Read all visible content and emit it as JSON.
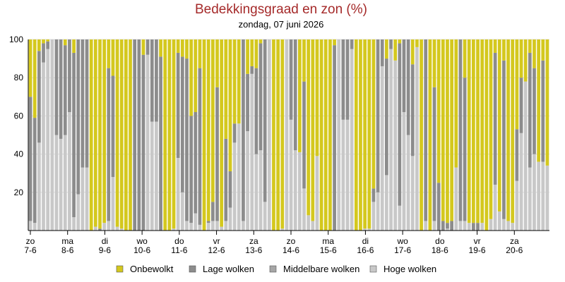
{
  "chart_data": {
    "type": "bar",
    "stacked": true,
    "title": "Bedekkingsgraad en zon (%)",
    "subtitle": "zondag, 07 juni 2026",
    "ylim": [
      0,
      100
    ],
    "yticks": [
      20,
      40,
      60,
      80,
      100
    ],
    "grid": true,
    "legend_position": "bottom",
    "x_ticks": [
      {
        "day": "zo",
        "date": "7-6"
      },
      {
        "day": "ma",
        "date": "8-6"
      },
      {
        "day": "di",
        "date": "9-6"
      },
      {
        "day": "wo",
        "date": "10-6"
      },
      {
        "day": "do",
        "date": "11-6"
      },
      {
        "day": "vr",
        "date": "12-6"
      },
      {
        "day": "za",
        "date": "13-6"
      },
      {
        "day": "zo",
        "date": "14-6"
      },
      {
        "day": "ma",
        "date": "15-6"
      },
      {
        "day": "di",
        "date": "16-6"
      },
      {
        "day": "wo",
        "date": "17-6"
      },
      {
        "day": "do",
        "date": "18-6"
      },
      {
        "day": "vr",
        "date": "19-6"
      },
      {
        "day": "za",
        "date": "20-6"
      }
    ],
    "legend": [
      {
        "name": "Onbewolkt",
        "color": "#d4c81e"
      },
      {
        "name": "Lage wolken",
        "color": "#8c8c8c"
      },
      {
        "name": "Middelbare wolken",
        "color": "#a6a6a6"
      },
      {
        "name": "Hoge wolken",
        "color": "#c8c8c8"
      }
    ],
    "colors": {
      "onbewolkt": "#d4c81e",
      "lage": "#8c8c8c",
      "middel": "#a6a6a6",
      "hoge": "#c8c8c8",
      "axis": "#000000",
      "grid": "#dddddd"
    },
    "series_encoding": "each row = [hoge, middel, lage, onbewolkt] in %, stacked from bottom",
    "bars": [
      [
        5,
        0,
        65,
        30
      ],
      [
        4,
        0,
        55,
        41
      ],
      [
        46,
        0,
        48,
        6
      ],
      [
        88,
        0,
        10,
        2
      ],
      [
        95,
        0,
        4,
        1
      ],
      [
        100,
        0,
        0,
        0
      ],
      [
        50,
        0,
        50,
        0
      ],
      [
        48,
        0,
        52,
        0
      ],
      [
        50,
        0,
        47,
        3
      ],
      [
        62,
        0,
        38,
        0
      ],
      [
        7,
        0,
        86,
        7
      ],
      [
        19,
        0,
        81,
        0
      ],
      [
        33,
        0,
        67,
        0
      ],
      [
        33,
        0,
        67,
        0
      ],
      [
        0,
        0,
        0,
        100
      ],
      [
        2,
        0,
        0,
        98
      ],
      [
        0,
        0,
        1,
        99
      ],
      [
        4,
        0,
        0,
        96
      ],
      [
        5,
        0,
        80,
        15
      ],
      [
        28,
        0,
        53,
        19
      ],
      [
        2,
        0,
        0,
        98
      ],
      [
        1,
        0,
        0,
        99
      ],
      [
        0,
        0,
        0,
        100
      ],
      [
        0,
        0,
        0,
        100
      ],
      [
        0,
        0,
        100,
        0
      ],
      [
        0,
        0,
        100,
        0
      ],
      [
        0,
        0,
        92,
        8
      ],
      [
        92,
        0,
        8,
        0
      ],
      [
        57,
        0,
        43,
        0
      ],
      [
        57,
        0,
        43,
        0
      ],
      [
        0,
        0,
        91,
        9
      ],
      [
        0,
        0,
        0,
        100
      ],
      [
        0,
        0,
        0,
        100
      ],
      [
        1,
        0,
        0,
        99
      ],
      [
        38,
        0,
        55,
        7
      ],
      [
        20,
        0,
        71,
        9
      ],
      [
        5,
        0,
        85,
        10
      ],
      [
        4,
        0,
        56,
        40
      ],
      [
        9,
        0,
        53,
        38
      ],
      [
        3,
        0,
        82,
        15
      ],
      [
        0,
        0,
        0,
        100
      ],
      [
        4,
        0,
        1,
        95
      ],
      [
        5,
        0,
        10,
        85
      ],
      [
        5,
        0,
        70,
        25
      ],
      [
        2,
        0,
        0,
        98
      ],
      [
        5,
        0,
        43,
        52
      ],
      [
        12,
        0,
        19,
        69
      ],
      [
        46,
        0,
        10,
        44
      ],
      [
        56,
        0,
        0,
        44
      ],
      [
        5,
        0,
        95,
        0
      ],
      [
        52,
        0,
        30,
        18
      ],
      [
        82,
        0,
        4,
        14
      ],
      [
        40,
        0,
        45,
        15
      ],
      [
        42,
        0,
        56,
        2
      ],
      [
        15,
        0,
        85,
        0
      ],
      [
        100,
        0,
        0,
        0
      ],
      [
        0,
        0,
        0,
        100
      ],
      [
        0,
        0,
        0,
        100
      ],
      [
        1,
        0,
        0,
        99
      ],
      [
        100,
        0,
        0,
        0
      ],
      [
        58,
        0,
        42,
        0
      ],
      [
        42,
        0,
        58,
        0
      ],
      [
        41,
        0,
        0,
        59
      ],
      [
        22,
        0,
        56,
        22
      ],
      [
        8,
        0,
        0,
        92
      ],
      [
        5,
        0,
        0,
        95
      ],
      [
        39,
        0,
        0,
        61
      ],
      [
        0,
        0,
        0,
        100
      ],
      [
        0,
        0,
        0,
        100
      ],
      [
        0,
        0,
        0,
        100
      ],
      [
        0,
        0,
        97,
        3
      ],
      [
        100,
        0,
        0,
        0
      ],
      [
        58,
        0,
        42,
        0
      ],
      [
        58,
        0,
        42,
        0
      ],
      [
        95,
        0,
        5,
        0
      ],
      [
        0,
        0,
        0,
        100
      ],
      [
        0,
        0,
        0,
        100
      ],
      [
        1,
        0,
        0,
        99
      ],
      [
        1,
        0,
        0,
        99
      ],
      [
        15,
        0,
        7,
        78
      ],
      [
        20,
        0,
        80,
        0
      ],
      [
        86,
        0,
        14,
        0
      ],
      [
        29,
        0,
        61,
        10
      ],
      [
        95,
        0,
        5,
        0
      ],
      [
        89,
        0,
        0,
        11
      ],
      [
        13,
        0,
        85,
        2
      ],
      [
        62,
        0,
        38,
        0
      ],
      [
        50,
        0,
        50,
        0
      ],
      [
        39,
        0,
        48,
        13
      ],
      [
        96,
        0,
        0,
        4
      ],
      [
        0,
        0,
        0,
        100
      ],
      [
        5,
        0,
        95,
        0
      ],
      [
        0,
        0,
        0,
        100
      ],
      [
        5,
        0,
        70,
        25
      ],
      [
        0,
        0,
        25,
        75
      ],
      [
        0,
        0,
        5,
        95
      ],
      [
        1,
        0,
        3,
        96
      ],
      [
        0,
        0,
        5,
        95
      ],
      [
        33,
        0,
        0,
        67
      ],
      [
        5,
        0,
        95,
        0
      ],
      [
        5,
        0,
        75,
        20
      ],
      [
        4,
        0,
        0,
        96
      ],
      [
        0,
        0,
        4,
        96
      ],
      [
        0,
        0,
        4,
        96
      ],
      [
        4,
        0,
        0,
        96
      ],
      [
        0,
        0,
        0,
        100
      ],
      [
        6,
        0,
        0,
        94
      ],
      [
        24,
        0,
        69,
        7
      ],
      [
        10,
        0,
        0,
        90
      ],
      [
        6,
        0,
        83,
        11
      ],
      [
        5,
        0,
        0,
        95
      ],
      [
        4,
        0,
        0,
        96
      ],
      [
        26,
        0,
        27,
        47
      ],
      [
        51,
        0,
        29,
        20
      ],
      [
        78,
        0,
        0,
        22
      ],
      [
        33,
        0,
        60,
        7
      ],
      [
        40,
        0,
        45,
        15
      ],
      [
        36,
        0,
        0,
        64
      ],
      [
        36,
        0,
        53,
        11
      ],
      [
        34,
        0,
        0,
        66
      ]
    ]
  }
}
